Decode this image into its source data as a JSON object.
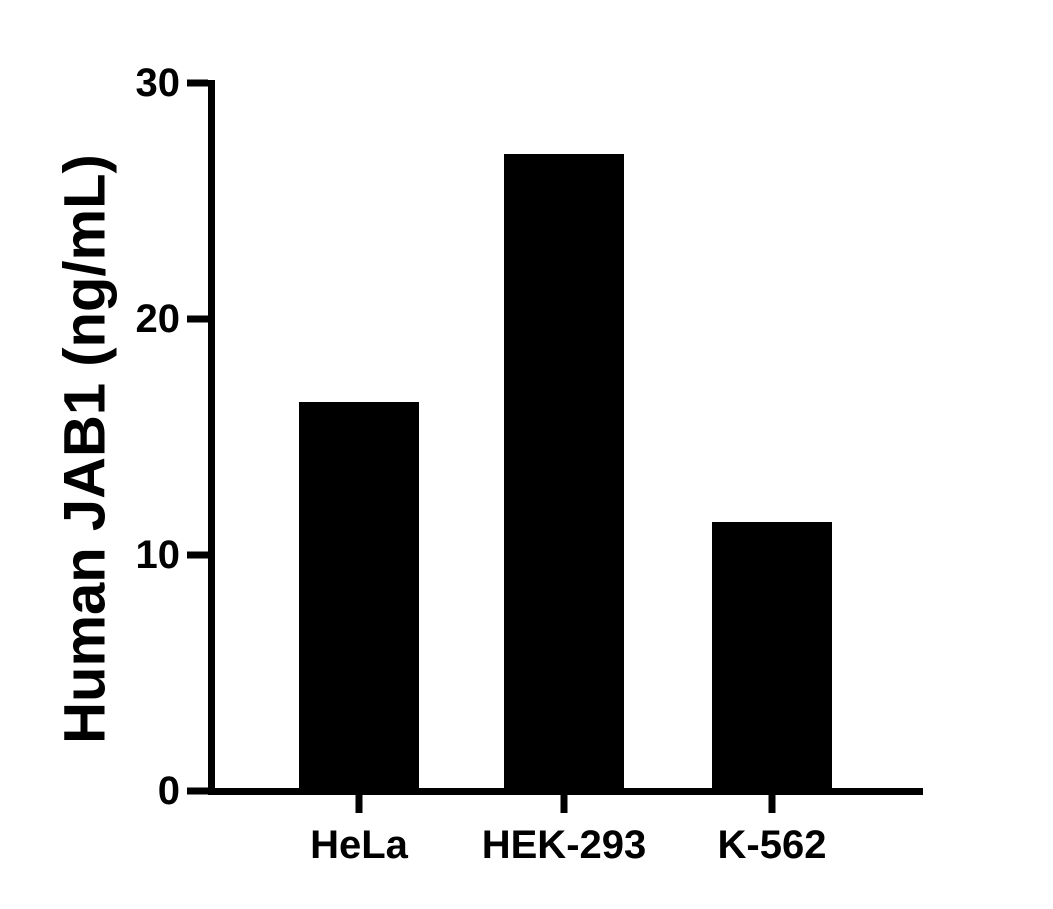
{
  "chart_data": {
    "type": "bar",
    "title": "",
    "categories": [
      "HeLa",
      "HEK-293",
      "K-562"
    ],
    "values": [
      16.5,
      27.0,
      11.4
    ],
    "xlabel": "",
    "ylabel": "Human JAB1 (ng/mL)",
    "ylim": [
      0,
      30
    ],
    "yticks": [
      0,
      10,
      20,
      30
    ],
    "bar_color": "#000000",
    "axis_color": "#000000",
    "text_color": "#000000",
    "background": "#ffffff",
    "grid": false,
    "legend": false
  }
}
